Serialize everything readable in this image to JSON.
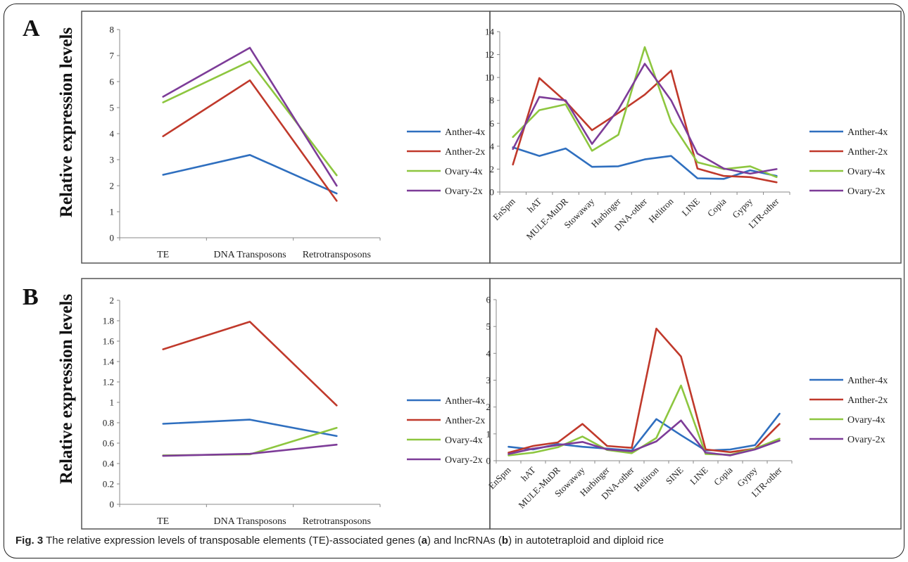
{
  "panels": [
    {
      "letter": "A",
      "ylabel": "Relative expression levels"
    },
    {
      "letter": "B",
      "ylabel": "Relative expression levels"
    }
  ],
  "caption": {
    "fig": "Fig. 3",
    "t1": " The relative expression levels of transposable elements (TE)-associated genes (",
    "a": "a",
    "t2": ") and lncRNAs (",
    "b": "b",
    "t3": ") in autotetraploid and diploid rice"
  },
  "chart_data": [
    {
      "type": "line",
      "panel": "A",
      "categories": [
        "TE",
        "DNA Transposons",
        "Retrotransposons"
      ],
      "ylim": [
        0,
        8
      ],
      "yticks": [
        "0",
        "1",
        "2",
        "3",
        "4",
        "5",
        "6",
        "7",
        "8"
      ],
      "legend_position": "right",
      "series": [
        {
          "name": "Anther-4x",
          "color": "#2f6fbf",
          "values": [
            2.42,
            3.18,
            1.7
          ]
        },
        {
          "name": "Anther-2x",
          "color": "#c0392b",
          "values": [
            3.9,
            6.05,
            1.42
          ]
        },
        {
          "name": "Ovary-4x",
          "color": "#8dc63f",
          "values": [
            5.2,
            6.78,
            2.4
          ]
        },
        {
          "name": "Ovary-2x",
          "color": "#7d3c98",
          "values": [
            5.42,
            7.3,
            2.0
          ]
        }
      ]
    },
    {
      "type": "line",
      "panel": "A",
      "categories": [
        "EnSpm",
        "hAT",
        "MULE-MuDR",
        "Stowaway",
        "Harbinger",
        "DNA-other",
        "Helitron",
        "LINE",
        "Copia",
        "Gypsy",
        "LTR-other"
      ],
      "ylim": [
        0,
        14
      ],
      "yticks": [
        "0",
        "2",
        "4",
        "6",
        "8",
        "10",
        "12",
        "14"
      ],
      "legend_position": "right",
      "series": [
        {
          "name": "Anther-4x",
          "color": "#2f6fbf",
          "values": [
            3.9,
            3.15,
            3.8,
            2.2,
            2.25,
            2.85,
            3.15,
            1.2,
            1.15,
            1.9,
            1.4
          ]
        },
        {
          "name": "Anther-2x",
          "color": "#c0392b",
          "values": [
            2.4,
            9.95,
            7.9,
            5.4,
            6.9,
            8.5,
            10.6,
            2.05,
            1.4,
            1.3,
            0.85
          ]
        },
        {
          "name": "Ovary-4x",
          "color": "#8dc63f",
          "values": [
            4.8,
            7.15,
            7.65,
            3.6,
            5.0,
            12.65,
            6.1,
            2.6,
            2.0,
            2.25,
            1.3
          ]
        },
        {
          "name": "Ovary-2x",
          "color": "#7d3c98",
          "values": [
            3.75,
            8.3,
            8.0,
            4.2,
            7.2,
            11.2,
            8.0,
            3.35,
            2.05,
            1.6,
            2.0
          ]
        }
      ]
    },
    {
      "type": "line",
      "panel": "B",
      "categories": [
        "TE",
        "DNA Transposons",
        "Retrotransposons"
      ],
      "ylim": [
        0,
        2
      ],
      "yticks": [
        "0",
        "0.2",
        "0.4",
        "0.6",
        "0.8",
        "1",
        "1.2",
        "1.4",
        "1.6",
        "1.8",
        "2"
      ],
      "legend_position": "right",
      "series": [
        {
          "name": "Anther-4x",
          "color": "#2f6fbf",
          "values": [
            0.79,
            0.83,
            0.67
          ]
        },
        {
          "name": "Anther-2x",
          "color": "#c0392b",
          "values": [
            1.52,
            1.79,
            0.97
          ]
        },
        {
          "name": "Ovary-4x",
          "color": "#8dc63f",
          "values": [
            0.48,
            0.49,
            0.75
          ]
        },
        {
          "name": "Ovary-2x",
          "color": "#7d3c98",
          "values": [
            0.475,
            0.495,
            0.585
          ]
        }
      ]
    },
    {
      "type": "line",
      "panel": "B",
      "categories": [
        "EnSpm",
        "hAT",
        "MULE-MuDR",
        "Stowaway",
        "Harbinger",
        "DNA-other",
        "Helitron",
        "SINE",
        "LINE",
        "Copia",
        "Gypsy",
        "LTR-other"
      ],
      "ylim": [
        0,
        6
      ],
      "yticks": [
        "0",
        "1",
        "2",
        "3",
        "4",
        "5",
        "6"
      ],
      "legend_position": "right",
      "series": [
        {
          "name": "Anther-4x",
          "color": "#2f6fbf",
          "values": [
            0.52,
            0.42,
            0.62,
            0.52,
            0.45,
            0.38,
            1.55,
            0.95,
            0.38,
            0.42,
            0.58,
            1.75
          ]
        },
        {
          "name": "Anther-2x",
          "color": "#c0392b",
          "values": [
            0.3,
            0.55,
            0.68,
            1.37,
            0.55,
            0.48,
            4.92,
            3.88,
            0.42,
            0.32,
            0.45,
            1.37
          ]
        },
        {
          "name": "Ovary-4x",
          "color": "#8dc63f",
          "values": [
            0.2,
            0.3,
            0.5,
            0.9,
            0.4,
            0.28,
            0.85,
            2.8,
            0.25,
            0.22,
            0.45,
            0.82
          ]
        },
        {
          "name": "Ovary-2x",
          "color": "#7d3c98",
          "values": [
            0.25,
            0.45,
            0.58,
            0.7,
            0.42,
            0.35,
            0.72,
            1.5,
            0.3,
            0.2,
            0.42,
            0.75
          ]
        }
      ]
    }
  ]
}
